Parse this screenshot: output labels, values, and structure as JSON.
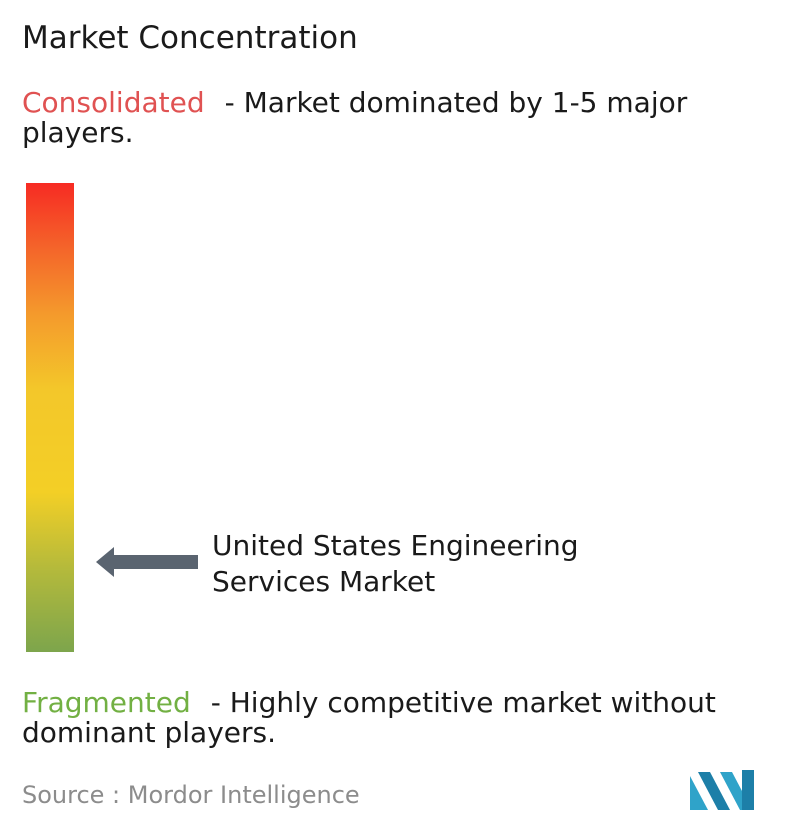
{
  "title": "Market Concentration",
  "consolidated": {
    "label": "Consolidated",
    "description": "- Market dominated by 1-5 major players.",
    "color": "#e05252"
  },
  "fragmented": {
    "label": "Fragmented",
    "description": "- Highly competitive market without dominant players.",
    "color": "#72b043"
  },
  "market_label": "United States Engineering Services Market",
  "source": "Source :  Mordor Intelligence",
  "logo_icon": "mordor-intelligence-logo-icon",
  "chart_data": {
    "type": "gauge",
    "title": "Market Concentration",
    "scale_top": "Consolidated",
    "scale_bottom": "Fragmented",
    "gradient_colors": [
      "#f72b23",
      "#f49a2c",
      "#f3cf26",
      "#7da54c"
    ],
    "marker": {
      "label": "United States Engineering Services Market",
      "position_fraction_from_top": 0.81
    }
  }
}
